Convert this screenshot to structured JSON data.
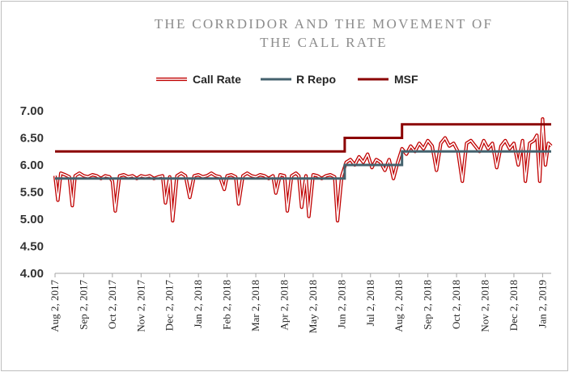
{
  "title_line1": "THE CORRDIDOR AND THE MOVEMENT OF",
  "title_line2": "THE CALL RATE",
  "chart_data": {
    "type": "line",
    "title": "THE CORRDIDOR AND THE MOVEMENT OF THE CALL RATE",
    "xlabel": "",
    "ylabel": "",
    "ylim": [
      4.0,
      7.0
    ],
    "yticks": [
      "4.00",
      "4.50",
      "5.00",
      "5.50",
      "6.00",
      "6.50",
      "7.00"
    ],
    "x_tick_labels": [
      "Aug 2, 2017",
      "Sep 2, 2017",
      "Oct 2, 2017",
      "Nov 2, 2017",
      "Dec 2, 2017",
      "Jan 2, 2018",
      "Feb 2, 2018",
      "Mar 2, 2018",
      "Apr 2, 2018",
      "May 2, 2018",
      "Jun 2, 2018",
      "Jul 2, 2018",
      "Aug 2, 2018",
      "Sep 2, 2018",
      "Oct 2, 2018",
      "Nov 2, 2018",
      "Dec 2, 2018",
      "Jan 2, 2019"
    ],
    "x_range": [
      0,
      17.3
    ],
    "legend": [
      "Call Rate",
      "R Repo",
      "MSF"
    ],
    "legend_position": "top",
    "colors": {
      "call_rate": "#c00000",
      "repo": "#44626e",
      "msf": "#8b0000"
    },
    "series": [
      {
        "name": "MSF",
        "style": "step",
        "points": [
          [
            0,
            6.25
          ],
          [
            10.1,
            6.25
          ],
          [
            10.1,
            6.5
          ],
          [
            12.1,
            6.5
          ],
          [
            12.1,
            6.75
          ],
          [
            17.3,
            6.75
          ]
        ]
      },
      {
        "name": "R Repo",
        "style": "step",
        "points": [
          [
            0,
            5.75
          ],
          [
            10.1,
            5.75
          ],
          [
            10.1,
            6.0
          ],
          [
            12.1,
            6.0
          ],
          [
            12.1,
            6.25
          ],
          [
            17.3,
            6.25
          ]
        ]
      },
      {
        "name": "Call Rate",
        "style": "line",
        "points": [
          [
            0.0,
            5.8
          ],
          [
            0.1,
            5.35
          ],
          [
            0.2,
            5.85
          ],
          [
            0.35,
            5.82
          ],
          [
            0.5,
            5.78
          ],
          [
            0.6,
            5.25
          ],
          [
            0.7,
            5.8
          ],
          [
            0.85,
            5.85
          ],
          [
            1.0,
            5.8
          ],
          [
            1.15,
            5.78
          ],
          [
            1.3,
            5.82
          ],
          [
            1.45,
            5.8
          ],
          [
            1.6,
            5.75
          ],
          [
            1.75,
            5.8
          ],
          [
            1.9,
            5.78
          ],
          [
            2.0,
            5.7
          ],
          [
            2.1,
            5.15
          ],
          [
            2.25,
            5.8
          ],
          [
            2.4,
            5.82
          ],
          [
            2.55,
            5.78
          ],
          [
            2.7,
            5.8
          ],
          [
            2.85,
            5.75
          ],
          [
            3.0,
            5.8
          ],
          [
            3.15,
            5.78
          ],
          [
            3.3,
            5.8
          ],
          [
            3.45,
            5.75
          ],
          [
            3.6,
            5.78
          ],
          [
            3.75,
            5.8
          ],
          [
            3.85,
            5.3
          ],
          [
            4.0,
            5.78
          ],
          [
            4.1,
            4.97
          ],
          [
            4.25,
            5.8
          ],
          [
            4.4,
            5.85
          ],
          [
            4.55,
            5.8
          ],
          [
            4.7,
            5.4
          ],
          [
            4.85,
            5.8
          ],
          [
            5.0,
            5.82
          ],
          [
            5.15,
            5.78
          ],
          [
            5.3,
            5.8
          ],
          [
            5.45,
            5.85
          ],
          [
            5.6,
            5.8
          ],
          [
            5.75,
            5.78
          ],
          [
            5.9,
            5.55
          ],
          [
            6.0,
            5.8
          ],
          [
            6.15,
            5.82
          ],
          [
            6.3,
            5.78
          ],
          [
            6.4,
            5.28
          ],
          [
            6.55,
            5.8
          ],
          [
            6.7,
            5.85
          ],
          [
            6.85,
            5.8
          ],
          [
            7.0,
            5.78
          ],
          [
            7.15,
            5.82
          ],
          [
            7.3,
            5.8
          ],
          [
            7.45,
            5.75
          ],
          [
            7.6,
            5.8
          ],
          [
            7.7,
            5.48
          ],
          [
            7.85,
            5.82
          ],
          [
            8.0,
            5.8
          ],
          [
            8.1,
            5.15
          ],
          [
            8.25,
            5.8
          ],
          [
            8.4,
            5.85
          ],
          [
            8.5,
            5.8
          ],
          [
            8.6,
            5.22
          ],
          [
            8.75,
            5.8
          ],
          [
            8.85,
            5.05
          ],
          [
            9.0,
            5.82
          ],
          [
            9.15,
            5.8
          ],
          [
            9.3,
            5.75
          ],
          [
            9.45,
            5.8
          ],
          [
            9.6,
            5.82
          ],
          [
            9.75,
            5.78
          ],
          [
            9.85,
            4.97
          ],
          [
            10.0,
            5.8
          ],
          [
            10.15,
            6.05
          ],
          [
            10.3,
            6.1
          ],
          [
            10.45,
            6.0
          ],
          [
            10.6,
            6.15
          ],
          [
            10.75,
            6.05
          ],
          [
            10.9,
            6.2
          ],
          [
            11.05,
            5.95
          ],
          [
            11.2,
            6.1
          ],
          [
            11.35,
            6.05
          ],
          [
            11.5,
            5.9
          ],
          [
            11.65,
            6.1
          ],
          [
            11.8,
            5.75
          ],
          [
            11.95,
            6.05
          ],
          [
            12.1,
            6.3
          ],
          [
            12.25,
            6.2
          ],
          [
            12.4,
            6.35
          ],
          [
            12.55,
            6.25
          ],
          [
            12.7,
            6.4
          ],
          [
            12.85,
            6.3
          ],
          [
            13.0,
            6.45
          ],
          [
            13.15,
            6.35
          ],
          [
            13.3,
            5.9
          ],
          [
            13.45,
            6.4
          ],
          [
            13.6,
            6.5
          ],
          [
            13.75,
            6.35
          ],
          [
            13.9,
            6.4
          ],
          [
            14.05,
            6.25
          ],
          [
            14.2,
            5.7
          ],
          [
            14.35,
            6.4
          ],
          [
            14.5,
            6.45
          ],
          [
            14.65,
            6.35
          ],
          [
            14.8,
            6.25
          ],
          [
            14.95,
            6.45
          ],
          [
            15.1,
            6.3
          ],
          [
            15.25,
            6.4
          ],
          [
            15.4,
            5.95
          ],
          [
            15.55,
            6.35
          ],
          [
            15.7,
            6.45
          ],
          [
            15.85,
            6.3
          ],
          [
            16.0,
            6.4
          ],
          [
            16.15,
            6.0
          ],
          [
            16.3,
            6.45
          ],
          [
            16.4,
            5.7
          ],
          [
            16.55,
            6.4
          ],
          [
            16.7,
            6.45
          ],
          [
            16.8,
            6.55
          ],
          [
            16.9,
            5.7
          ],
          [
            17.0,
            6.85
          ],
          [
            17.1,
            6.0
          ],
          [
            17.2,
            6.4
          ],
          [
            17.3,
            6.35
          ]
        ]
      }
    ]
  }
}
